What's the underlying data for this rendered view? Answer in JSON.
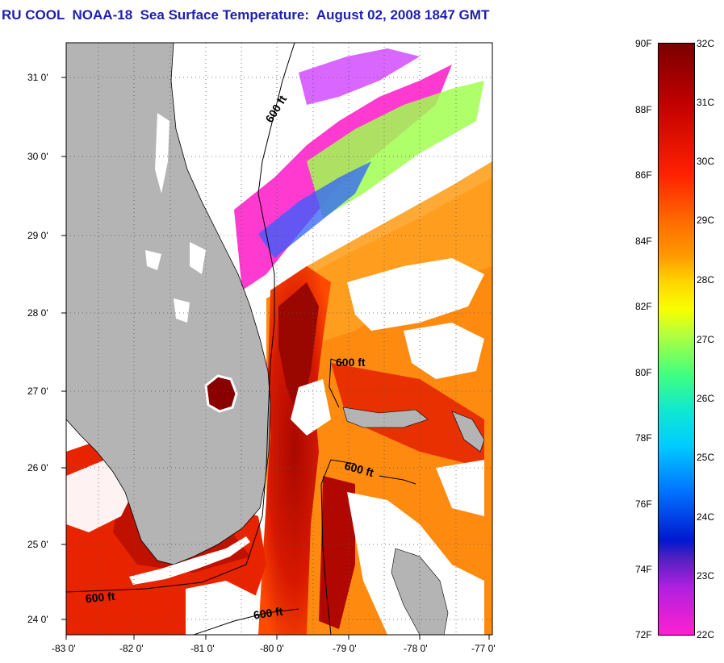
{
  "title": "RU COOL  NOAA-18  Sea Surface Temperature:  August 02, 2008 1847 GMT",
  "map": {
    "lat_ticks": [
      "31 0'",
      "30 0'",
      "29 0'",
      "28 0'",
      "27 0'",
      "26 0'",
      "25 0'",
      "24 0'"
    ],
    "lon_ticks": [
      "-83 0'",
      "-82 0'",
      "-81 0'",
      "-80 0'",
      "-79 0'",
      "-78 0'",
      "-77 0'"
    ],
    "contour_labels": [
      "600 ft",
      "600 ft",
      "600 ft",
      "600 ft",
      "600 ft"
    ],
    "colors": {
      "land": "#b4b4b4",
      "cloud": "#ffffff",
      "warm": "#ff6a00",
      "hot": "#c81000",
      "cool": "#ff3ad0"
    }
  },
  "colorbar": {
    "fahrenheit": [
      "90F",
      "88F",
      "86F",
      "84F",
      "82F",
      "80F",
      "78F",
      "76F",
      "74F",
      "72F"
    ],
    "celsius": [
      "32C",
      "31C",
      "30C",
      "29C",
      "28C",
      "27C",
      "26C",
      "25C",
      "24C",
      "23C",
      "22C"
    ]
  }
}
